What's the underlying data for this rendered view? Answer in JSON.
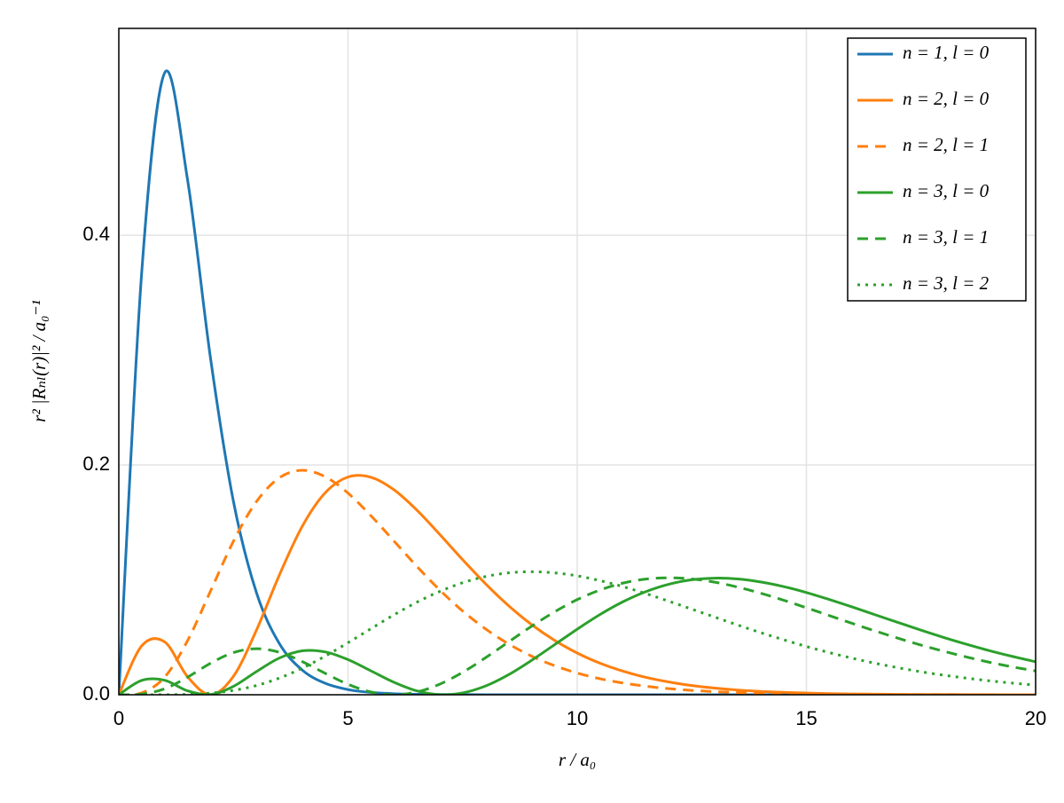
{
  "chart_data": {
    "type": "line",
    "xlabel": "r / a₀",
    "ylabel": "r² |Rₙₗ(r)|² / a₀⁻¹",
    "x": [
      0,
      0.5,
      1,
      1.5,
      2,
      2.5,
      3,
      3.5,
      4,
      4.5,
      5,
      5.5,
      6,
      6.5,
      7,
      7.5,
      8,
      8.5,
      9,
      9.5,
      10,
      10.5,
      11,
      11.5,
      12,
      12.5,
      13,
      13.5,
      14,
      14.5,
      15,
      15.5,
      16,
      16.5,
      17,
      17.5,
      18,
      18.5,
      19,
      19.5,
      20
    ],
    "series": [
      {
        "name": "n = 1, l = 0",
        "color": "#1f77b4",
        "dash": "solid",
        "values": [
          0,
          0.3679,
          0.5413,
          0.4481,
          0.2931,
          0.1684,
          0.0892,
          0.0447,
          0.0215,
          0.01,
          0.0045,
          0.002,
          0.0009,
          0.0004,
          0.0002,
          0.0001,
          0,
          0,
          0,
          0,
          0,
          0,
          0,
          0,
          0,
          0,
          0,
          0,
          0,
          0,
          0,
          0,
          0,
          0,
          0,
          0,
          0,
          0,
          0,
          0,
          0
        ]
      },
      {
        "name": "n = 2, l = 0",
        "color": "#ff7f0e",
        "dash": "solid",
        "values": [
          0,
          0.0426,
          0.046,
          0.0157,
          0,
          0.016,
          0.056,
          0.104,
          0.1465,
          0.1757,
          0.1895,
          0.1893,
          0.1785,
          0.1608,
          0.1396,
          0.1176,
          0.0966,
          0.0776,
          0.0612,
          0.0475,
          0.0363,
          0.0274,
          0.0205,
          0.0151,
          0.0111,
          0.008,
          0.0058,
          0.0041,
          0.0029,
          0.0021,
          0.0015,
          0.001,
          0.0007,
          0.0005,
          0.0003,
          0.0002,
          0.0002,
          0.0001,
          0.0001,
          0,
          0
        ]
      },
      {
        "name": "n = 2, l = 1",
        "color": "#ff7f0e",
        "dash": "dashed",
        "values": [
          0,
          0.0016,
          0.0153,
          0.0471,
          0.0902,
          0.1336,
          0.168,
          0.1888,
          0.1954,
          0.1898,
          0.1755,
          0.1558,
          0.1339,
          0.1118,
          0.0912,
          0.0729,
          0.0573,
          0.0443,
          0.0337,
          0.0254,
          0.0189,
          0.0139,
          0.0102,
          0.0074,
          0.0053,
          0.0038,
          0.0027,
          0.0019,
          0.0013,
          0.0009,
          0.0006,
          0.0004,
          0.0003,
          0.0002,
          0.0001,
          0.0001,
          0.0001,
          0,
          0,
          0,
          0
        ]
      },
      {
        "name": "n = 3, l = 0",
        "color": "#2ca02c",
        "dash": "solid",
        "values": [
          0,
          0.0125,
          0.0126,
          0.0034,
          0.0002,
          0.0073,
          0.0201,
          0.0319,
          0.0382,
          0.0373,
          0.0306,
          0.0208,
          0.0109,
          0.0034,
          0.0001,
          0.0016,
          0.0076,
          0.0174,
          0.0298,
          0.0434,
          0.0571,
          0.0699,
          0.081,
          0.0898,
          0.0962,
          0.1001,
          0.1015,
          0.1008,
          0.0982,
          0.0942,
          0.089,
          0.0829,
          0.0764,
          0.0696,
          0.0629,
          0.0562,
          0.0498,
          0.0439,
          0.0383,
          0.0333,
          0.0287
        ]
      },
      {
        "name": "n = 3, l = 1",
        "color": "#2ca02c",
        "dash": "dashed",
        "values": [
          0,
          0.0006,
          0.0052,
          0.0153,
          0.0274,
          0.0367,
          0.0401,
          0.037,
          0.0289,
          0.0187,
          0.0091,
          0.0024,
          0,
          0.0024,
          0.0092,
          0.0195,
          0.0322,
          0.0459,
          0.0595,
          0.072,
          0.0828,
          0.0912,
          0.0972,
          0.1007,
          0.1018,
          0.1008,
          0.098,
          0.0937,
          0.0884,
          0.0823,
          0.0757,
          0.0689,
          0.0621,
          0.0555,
          0.0492,
          0.0432,
          0.0378,
          0.0328,
          0.0282,
          0.0242,
          0.0207
        ]
      },
      {
        "name": "n = 3, l = 2",
        "color": "#2ca02c",
        "dash": "dotted",
        "values": [
          0,
          0,
          0,
          0.0003,
          0.0014,
          0.0038,
          0.008,
          0.0145,
          0.0231,
          0.0336,
          0.0453,
          0.0575,
          0.0695,
          0.0805,
          0.0899,
          0.0975,
          0.1029,
          0.1061,
          0.1071,
          0.1061,
          0.1035,
          0.0993,
          0.0941,
          0.088,
          0.0814,
          0.0745,
          0.0676,
          0.0607,
          0.0541,
          0.0479,
          0.042,
          0.0367,
          0.0318,
          0.0274,
          0.0235,
          0.02,
          0.017,
          0.0144,
          0.0121,
          0.0101,
          0.0084
        ]
      }
    ],
    "xlim": [
      0,
      20
    ],
    "xticks": [
      0,
      5,
      10,
      15,
      20
    ],
    "ylim": [
      0,
      0.58
    ],
    "yticks": [
      {
        "value": 0,
        "label": "0.0"
      },
      {
        "value": 0.2,
        "label": "0.2"
      },
      {
        "value": 0.4,
        "label": "0.4"
      }
    ],
    "grid": true,
    "legend": "top-right"
  }
}
